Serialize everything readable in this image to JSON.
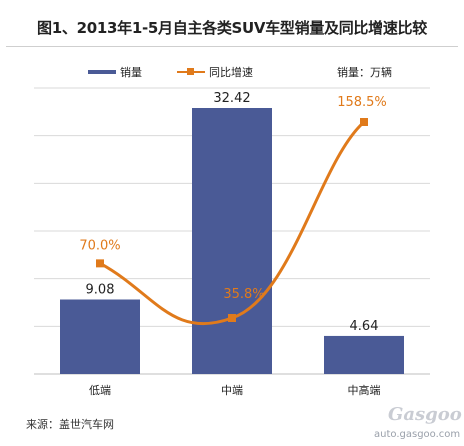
{
  "title": "图1、2013年1-5月自主各类SUV车型销量及同比增速比较",
  "legend": {
    "bar_label": "销量",
    "line_label": "同比增速",
    "unit_label": "销量：万辆"
  },
  "source": "来源：盖世汽车网",
  "watermark": {
    "brand": "Gasgoo",
    "url": "auto.gasgoo.com"
  },
  "colors": {
    "bar": "#4a5a96",
    "line": "#e07a1b",
    "line_label": "#e07a1b",
    "bar_label": "#222222",
    "grid": "#d9d9d9"
  },
  "chart_data": {
    "type": "bar",
    "categories": [
      "低端",
      "中端",
      "中高端"
    ],
    "series": [
      {
        "name": "销量",
        "type": "bar",
        "values": [
          9.08,
          32.42,
          4.64
        ],
        "labels": [
          "9.08",
          "32.42",
          "4.64"
        ]
      },
      {
        "name": "同比增速",
        "type": "line",
        "values": [
          70.0,
          35.8,
          158.5
        ],
        "labels": [
          "70.0%",
          "35.8%",
          "158.5%"
        ]
      }
    ],
    "ylabel": "销量：万辆",
    "grid": true,
    "legend_position": "top"
  }
}
